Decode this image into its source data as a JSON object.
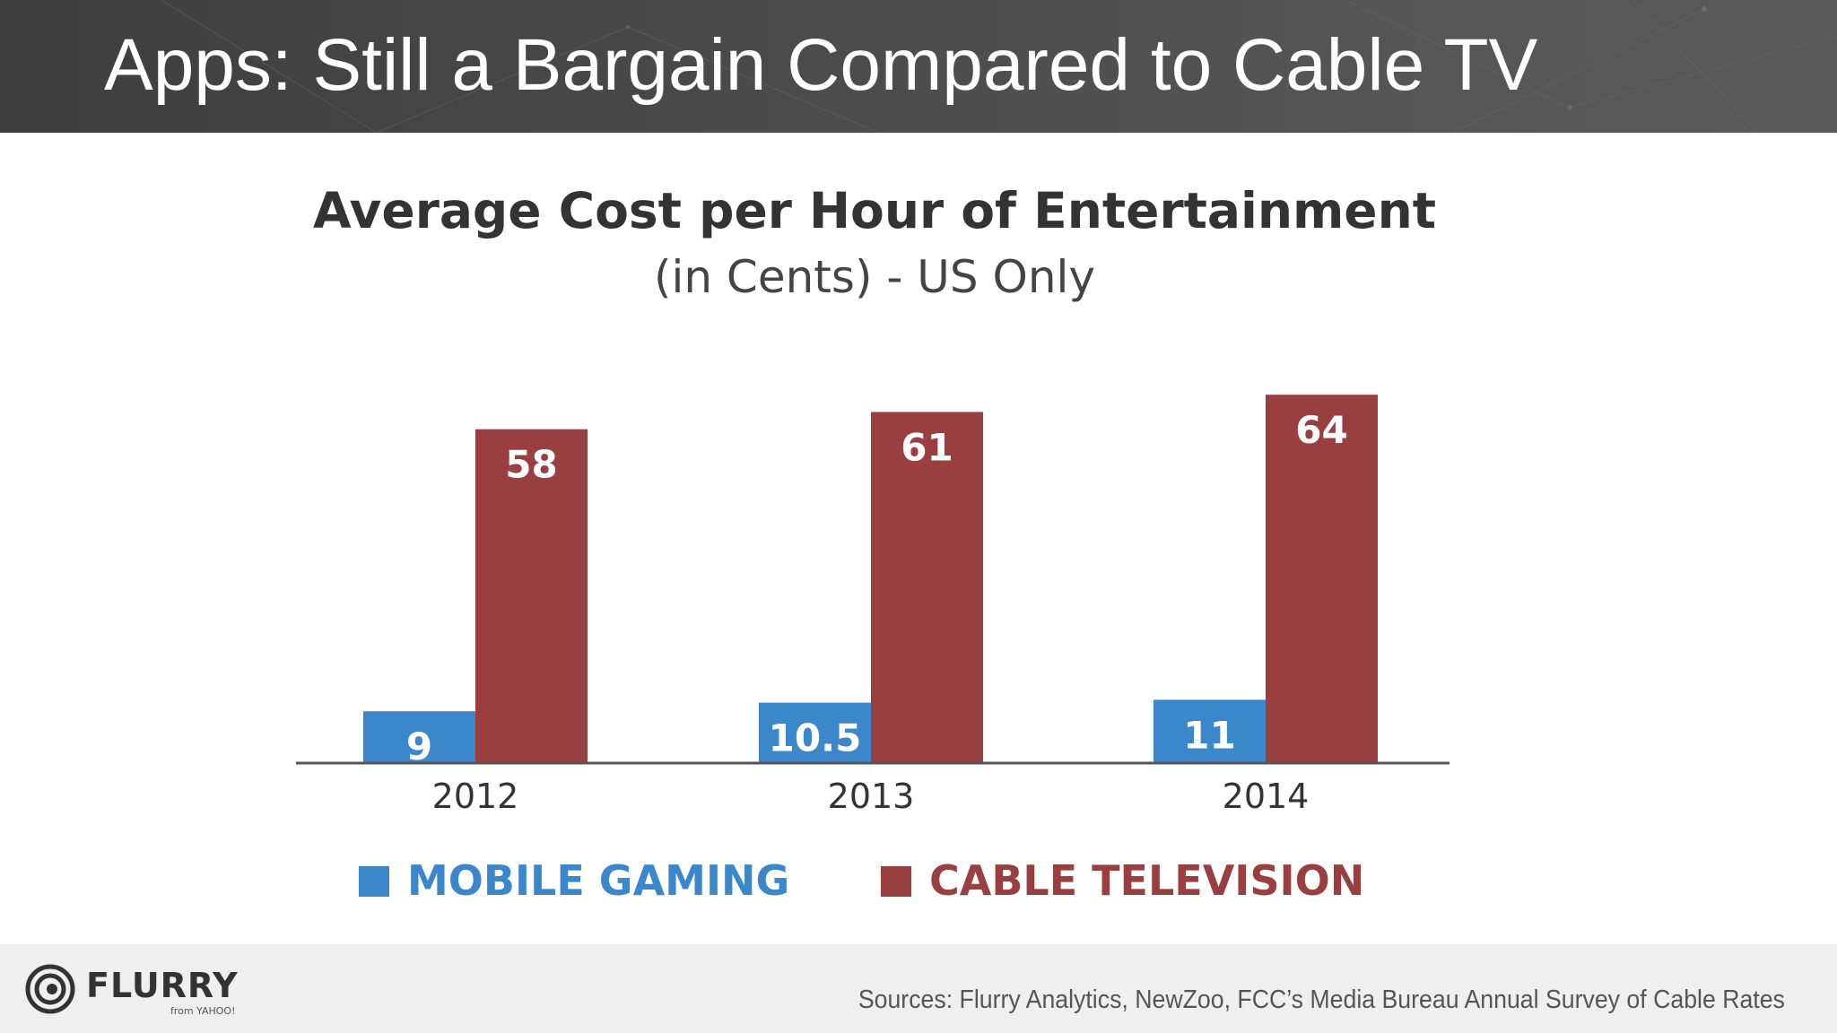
{
  "slide": {
    "title": "Apps: Still a Bargain Compared to Cable TV"
  },
  "chart_data": {
    "type": "bar",
    "title": "Average Cost per Hour of Entertainment",
    "subtitle": "(in Cents) - US Only",
    "categories": [
      "2012",
      "2013",
      "2014"
    ],
    "series": [
      {
        "name": "MOBILE GAMING",
        "values": [
          9,
          10.5,
          11
        ],
        "labels": [
          "9",
          "10.5",
          "11"
        ],
        "color": "#3b87cc"
      },
      {
        "name": "CABLE TELEVISION",
        "values": [
          58,
          61,
          64
        ],
        "labels": [
          "58",
          "61",
          "64"
        ],
        "color": "#9a3f40"
      }
    ],
    "ylim": [
      0,
      70
    ],
    "grid": false,
    "legend": "bottom",
    "xlabel": "",
    "ylabel": ""
  },
  "footer": {
    "logo_text": "FLURRY",
    "logo_sub": "from YAHOO!",
    "sources": "Sources: Flurry Analytics, NewZoo, FCC’s Media Bureau Annual Survey of Cable Rates"
  },
  "colors": {
    "header_bg": "#474747",
    "footer_bg": "#efefef",
    "axis": "#555555",
    "text_dark": "#333333"
  }
}
